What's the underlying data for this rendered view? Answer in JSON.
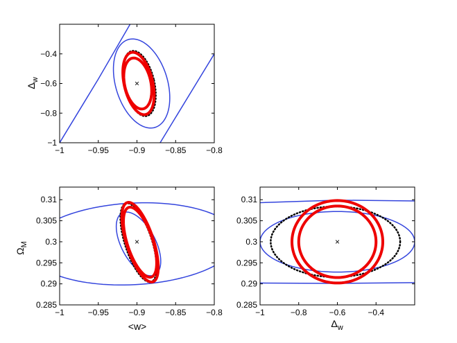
{
  "chart_data": [
    {
      "type": "contour",
      "id": "delta-vs-w",
      "title": "",
      "xlabel": "",
      "ylabel": "Δw",
      "ylabel_main": "Δ",
      "ylabel_sub": "w",
      "xlim": [
        -1,
        -0.8
      ],
      "ylim": [
        -1,
        -0.2
      ],
      "xticks": [
        -1,
        -0.95,
        -0.9,
        -0.85,
        -0.8
      ],
      "xtick_labels": [
        "−1",
        "−0.95",
        "−0.9",
        "−0.85",
        "−0.8"
      ],
      "yticks": [
        -1,
        -0.8,
        -0.6,
        -0.4
      ],
      "ytick_labels": [
        "−1",
        "−0.8",
        "−0.6",
        "−0.4"
      ],
      "fiducial": {
        "x": -0.9,
        "y": -0.6,
        "marker": "×"
      },
      "contours": [
        {
          "color": "#3344dd",
          "style": "solid",
          "kind": "line",
          "points": [
            [
              -1.0,
              -1.0
            ],
            [
              -0.95,
              -0.57
            ],
            [
              -0.9,
              -0.12
            ]
          ]
        },
        {
          "color": "#3344dd",
          "style": "solid",
          "kind": "line",
          "points": [
            [
              -0.87,
              -1.0
            ],
            [
              -0.8,
              -0.4
            ]
          ]
        },
        {
          "color": "#3344dd",
          "style": "solid",
          "kind": "ellipse",
          "cx": -0.894,
          "cy": -0.6,
          "rx": 0.0335,
          "ry": 0.31,
          "angle": -17
        },
        {
          "color": "#000000",
          "style": "dotted",
          "kind": "ellipse",
          "cx": -0.897,
          "cy": -0.6,
          "rx": 0.0195,
          "ry": 0.225,
          "angle": -13
        },
        {
          "color": "#ee0000",
          "style": "thick",
          "kind": "ellipse",
          "cx": -0.898,
          "cy": -0.6,
          "rx": 0.0185,
          "ry": 0.215,
          "angle": -13
        },
        {
          "color": "#ee0000",
          "style": "thick",
          "kind": "ellipse",
          "cx": -0.899,
          "cy": -0.6,
          "rx": 0.017,
          "ry": 0.175,
          "angle": -12
        }
      ]
    },
    {
      "type": "contour",
      "id": "omega-vs-w",
      "title": "",
      "xlabel": "<w>",
      "ylabel": "ΩM",
      "ylabel_main": "Ω",
      "ylabel_sub": "M",
      "xlim": [
        -1,
        -0.8
      ],
      "ylim": [
        0.285,
        0.313
      ],
      "xticks": [
        -1,
        -0.95,
        -0.9,
        -0.85,
        -0.8
      ],
      "xtick_labels": [
        "−1",
        "−0.95",
        "−0.9",
        "−0.85",
        "−0.8"
      ],
      "yticks": [
        0.285,
        0.29,
        0.295,
        0.3,
        0.305,
        0.31
      ],
      "ytick_labels": [
        "0.285",
        "0.29",
        "0.295",
        "0.3",
        "0.305",
        "0.31"
      ],
      "fiducial": {
        "x": -0.9,
        "y": 0.3,
        "marker": "×"
      },
      "contours": [
        {
          "color": "#3344dd",
          "style": "solid",
          "kind": "ellipse",
          "cx": -0.905,
          "cy": 0.2995,
          "rx": 0.135,
          "ry": 0.0097,
          "angle": -3
        },
        {
          "color": "#3344dd",
          "style": "solid",
          "kind": "ellipse",
          "cx": -0.898,
          "cy": 0.2995,
          "rx": 0.022,
          "ry": 0.0083,
          "angle": -28
        },
        {
          "color": "#000000",
          "style": "dotted",
          "kind": "ellipse",
          "cx": -0.898,
          "cy": 0.2998,
          "rx": 0.0175,
          "ry": 0.0098,
          "angle": -18
        },
        {
          "color": "#ee0000",
          "style": "thick",
          "kind": "ellipse",
          "cx": -0.896,
          "cy": 0.2999,
          "rx": 0.0175,
          "ry": 0.0099,
          "angle": -18
        },
        {
          "color": "#ee0000",
          "style": "thick",
          "kind": "ellipse",
          "cx": -0.896,
          "cy": 0.2999,
          "rx": 0.0165,
          "ry": 0.0087,
          "angle": -18
        }
      ]
    },
    {
      "type": "contour",
      "id": "omega-vs-delta",
      "title": "",
      "xlabel": "Δw",
      "xlabel_main": "Δ",
      "xlabel_sub": "w",
      "ylabel": "",
      "xlim": [
        -1,
        -0.2
      ],
      "ylim": [
        0.285,
        0.313
      ],
      "xticks": [
        -1,
        -0.8,
        -0.6,
        -0.4
      ],
      "xtick_labels": [
        "−1",
        "−0.8",
        "−0.6",
        "−0.4"
      ],
      "yticks": [
        0.285,
        0.29,
        0.295,
        0.3,
        0.305,
        0.31
      ],
      "ytick_labels": [
        "0.285",
        "0.29",
        "0.295",
        "0.3",
        "0.305",
        "0.31"
      ],
      "fiducial": {
        "x": -0.6,
        "y": 0.3,
        "marker": "×"
      },
      "contours": [
        {
          "color": "#3344dd",
          "style": "solid",
          "kind": "line",
          "points": [
            [
              -1.0,
              0.3093
            ],
            [
              -0.6,
              0.3099
            ],
            [
              -0.2,
              0.3097
            ]
          ]
        },
        {
          "color": "#3344dd",
          "style": "solid",
          "kind": "line",
          "points": [
            [
              -1.0,
              0.2902
            ],
            [
              -0.6,
              0.2901
            ],
            [
              -0.2,
              0.2903
            ]
          ]
        },
        {
          "color": "#3344dd",
          "style": "solid",
          "kind": "ellipse",
          "cx": -0.6,
          "cy": 0.3,
          "rx": 0.4,
          "ry": 0.0072,
          "angle": 0
        },
        {
          "color": "#000000",
          "style": "dotted",
          "kind": "ellipse",
          "cx": -0.61,
          "cy": 0.3,
          "rx": 0.335,
          "ry": 0.0084,
          "angle": 0
        },
        {
          "color": "#ee0000",
          "style": "thick",
          "kind": "ellipse",
          "cx": -0.6,
          "cy": 0.3,
          "rx": 0.235,
          "ry": 0.0098,
          "angle": 0
        },
        {
          "color": "#ee0000",
          "style": "thick",
          "kind": "ellipse",
          "cx": -0.6,
          "cy": 0.3,
          "rx": 0.2,
          "ry": 0.0085,
          "angle": 0
        }
      ]
    }
  ]
}
